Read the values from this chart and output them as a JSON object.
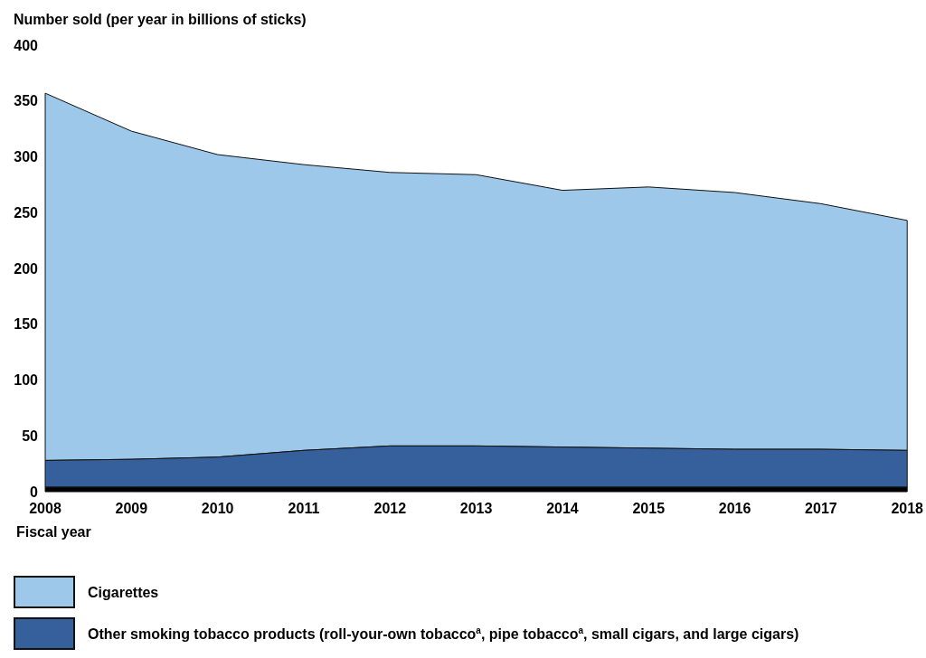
{
  "chart_data": {
    "type": "area",
    "ylabel": "Number sold (per year in billions of sticks)",
    "xlabel": "Fiscal year",
    "x": [
      2008,
      2009,
      2010,
      2011,
      2012,
      2013,
      2014,
      2015,
      2016,
      2017,
      2018
    ],
    "stacked": true,
    "series": [
      {
        "color": "#000000",
        "values": [
          4,
          4,
          4,
          4,
          4,
          4,
          4,
          4,
          4,
          4,
          4
        ]
      },
      {
        "name": "Other smoking tobacco products (roll-your-own tobacco$^{a}$, pipe tobacco$^{a}$, small cigars, and large cigars)",
        "color": "#35609b",
        "values": [
          24,
          25,
          27,
          33,
          37,
          37,
          36,
          35,
          34,
          34,
          33
        ]
      },
      {
        "name": "Cigarettes",
        "color": "#9dc8e9",
        "values": [
          329,
          294,
          271,
          256,
          245,
          243,
          230,
          234,
          230,
          220,
          206
        ]
      }
    ],
    "xlim": [
      2008,
      2018
    ],
    "xticks": [
      2008,
      2009,
      2010,
      2011,
      2012,
      2013,
      2014,
      2015,
      2016,
      2017,
      2018
    ],
    "ylim": [
      0,
      400
    ],
    "yticks": [
      0,
      50,
      100,
      150,
      200,
      250,
      300,
      350,
      400
    ],
    "grid": false,
    "legend": "bottom left"
  }
}
